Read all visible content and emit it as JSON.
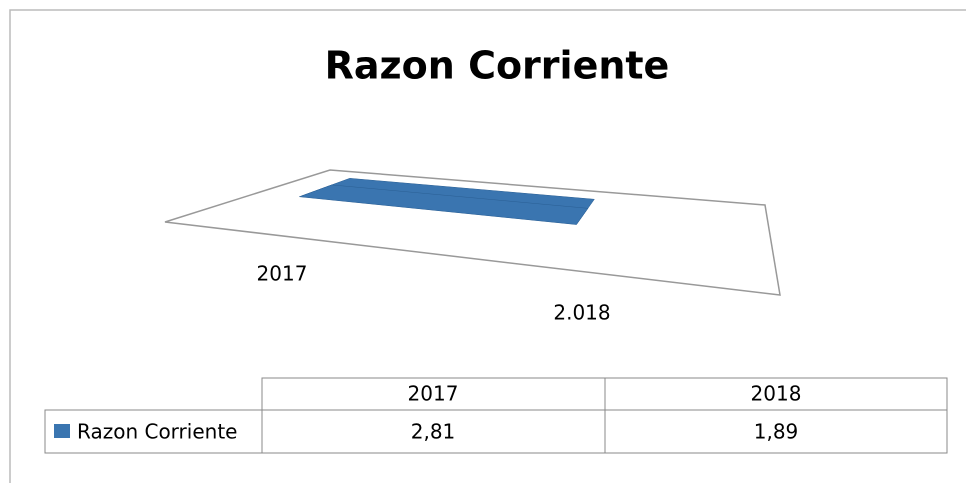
{
  "chart_data": {
    "type": "bar",
    "title": "Razon Corriente",
    "categories": [
      "2017",
      "2.018"
    ],
    "series": [
      {
        "name": "Razon Corriente",
        "color": "#3a75b0",
        "values": [
          2.81,
          1.89
        ],
        "value_labels": [
          "2,81",
          "1,89"
        ]
      }
    ],
    "data_table": {
      "columns": [
        "2017",
        "2018"
      ]
    }
  }
}
